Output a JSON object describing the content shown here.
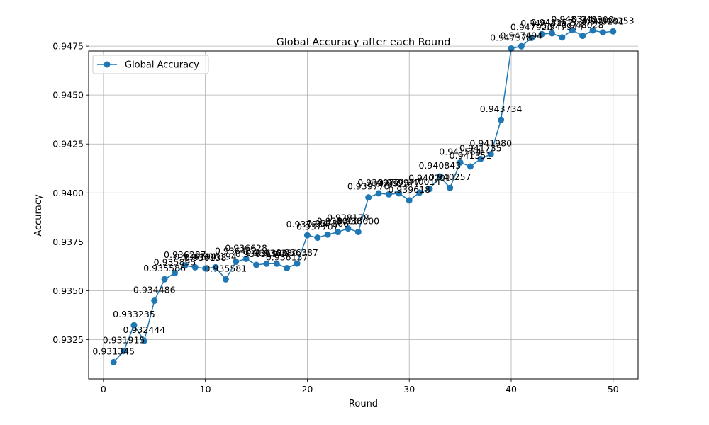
{
  "chart_data": {
    "type": "line",
    "title": "Global Accuracy after each Round",
    "xlabel": "Round",
    "ylabel": "Accuracy",
    "xlim": [
      -1.45,
      52.45
    ],
    "ylim": [
      0.93049,
      0.94725
    ],
    "xticks": [
      0,
      10,
      20,
      30,
      40,
      50
    ],
    "yticks": [
      0.9325,
      0.935,
      0.9375,
      0.94,
      0.9425,
      0.945,
      0.9475
    ],
    "xtick_labels": [
      "0",
      "10",
      "20",
      "30",
      "40",
      "50"
    ],
    "ytick_labels": [
      "0.9325",
      "0.9350",
      "0.9375",
      "0.9400",
      "0.9425",
      "0.9450",
      "0.9475"
    ],
    "grid": true,
    "legend": "upper-left",
    "series": [
      {
        "name": "Global Accuracy",
        "color": "#1f77b4",
        "marker": "circle",
        "x": [
          1,
          2,
          3,
          4,
          5,
          6,
          7,
          8,
          9,
          10,
          11,
          12,
          13,
          14,
          15,
          16,
          17,
          18,
          19,
          20,
          21,
          22,
          23,
          24,
          25,
          26,
          27,
          28,
          29,
          30,
          31,
          32,
          33,
          34,
          35,
          36,
          37,
          38,
          39,
          40,
          41,
          42,
          43,
          44,
          45,
          46,
          47,
          48,
          49,
          50
        ],
        "values": [
          0.931345,
          0.931915,
          0.933235,
          0.932444,
          0.934486,
          0.935586,
          0.935895,
          0.936287,
          0.936194,
          0.936138,
          0.936194,
          0.935581,
          0.936482,
          0.936628,
          0.936319,
          0.93638,
          0.93638,
          0.936157,
          0.936387,
          0.937834,
          0.937707,
          0.937866,
          0.938,
          0.938178,
          0.938,
          0.93977,
          0.939977,
          0.939925,
          0.939977,
          0.939618,
          0.940014,
          0.940201,
          0.940843,
          0.940257,
          0.941554,
          0.941351,
          0.941735,
          0.94198,
          0.943734,
          0.947378,
          0.947494,
          0.94792,
          0.948111,
          0.948157,
          0.947944,
          0.948314,
          0.948028,
          0.9483,
          0.948201,
          0.948253
        ],
        "labels": [
          "0.931345",
          "0.931915",
          "0.933235",
          "0.932444",
          "0.934486",
          "0.935586",
          "0.935895",
          "0.936287",
          "0.936194",
          "0.936138",
          "0.936194",
          "0.935581",
          "0.936482",
          "0.936628",
          "0.936319",
          "0.936380",
          "0.936380",
          "0.936157",
          "0.936387",
          "0.937834",
          "0.937707",
          "0.937866",
          "0.938000",
          "0.938178",
          "0.938000",
          "0.939770",
          "0.939977",
          "0.939925",
          "0.939977",
          "0.939618",
          "0.940014",
          "0.940201",
          "0.940843",
          "0.940257",
          "0.941554",
          "0.941351",
          "0.941735",
          "0.941980",
          "0.943734",
          "0.947378",
          "0.947494",
          "0.947920",
          "0.948111",
          "0.948157",
          "0.947944",
          "0.948314",
          "0.948028",
          "0.948300",
          "0.948201",
          "0.948253"
        ]
      }
    ]
  }
}
